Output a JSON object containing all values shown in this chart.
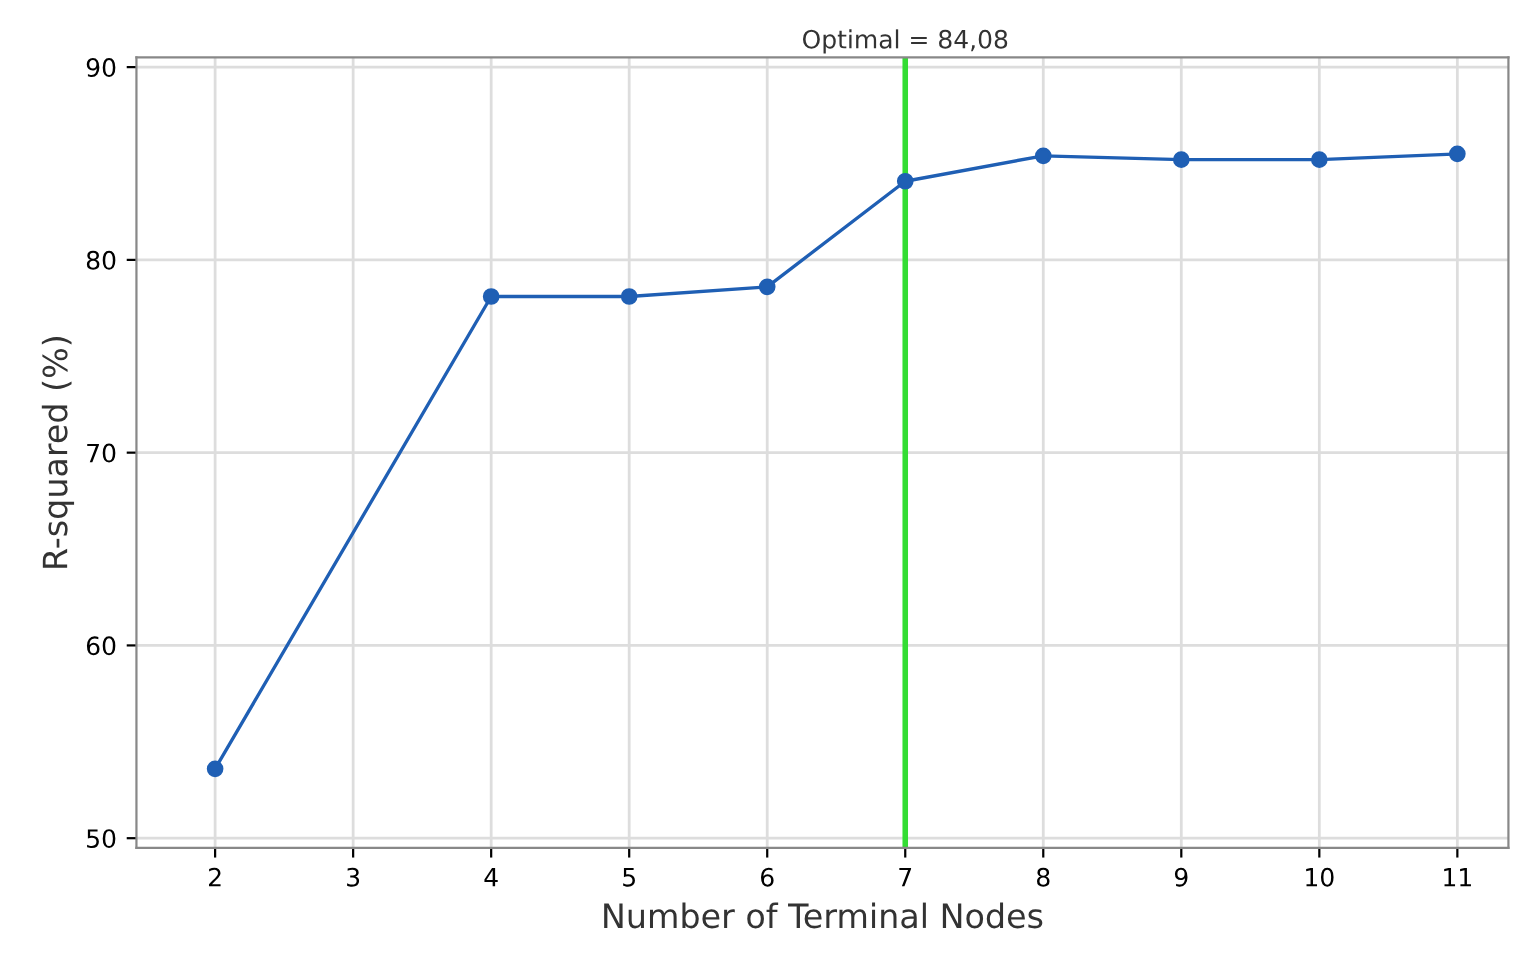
{
  "chart_data": {
    "type": "line",
    "xlabel": "Number of Terminal Nodes",
    "ylabel": "R-squared (%)",
    "x": [
      2,
      4,
      5,
      6,
      7,
      8,
      9,
      10,
      11
    ],
    "series": [
      {
        "color": "#1f5fb4",
        "values": [
          53.6,
          78.1,
          78.1,
          78.6,
          84.08,
          85.4,
          85.2,
          85.2,
          85.5
        ]
      }
    ],
    "xlim": [
      1.43,
      11.37
    ],
    "ylim": [
      49.5,
      90.5
    ],
    "xticks": [
      2,
      3,
      4,
      5,
      6,
      7,
      8,
      9,
      10,
      11
    ],
    "yticks": [
      50,
      60,
      70,
      80,
      90
    ],
    "ref_lines": [
      {
        "axis": "x",
        "value": 7,
        "color": "#33dd33"
      }
    ],
    "annotations": [
      "Optimal = 84,08"
    ],
    "grid": true,
    "marker": "circle",
    "line_style": "solid"
  }
}
